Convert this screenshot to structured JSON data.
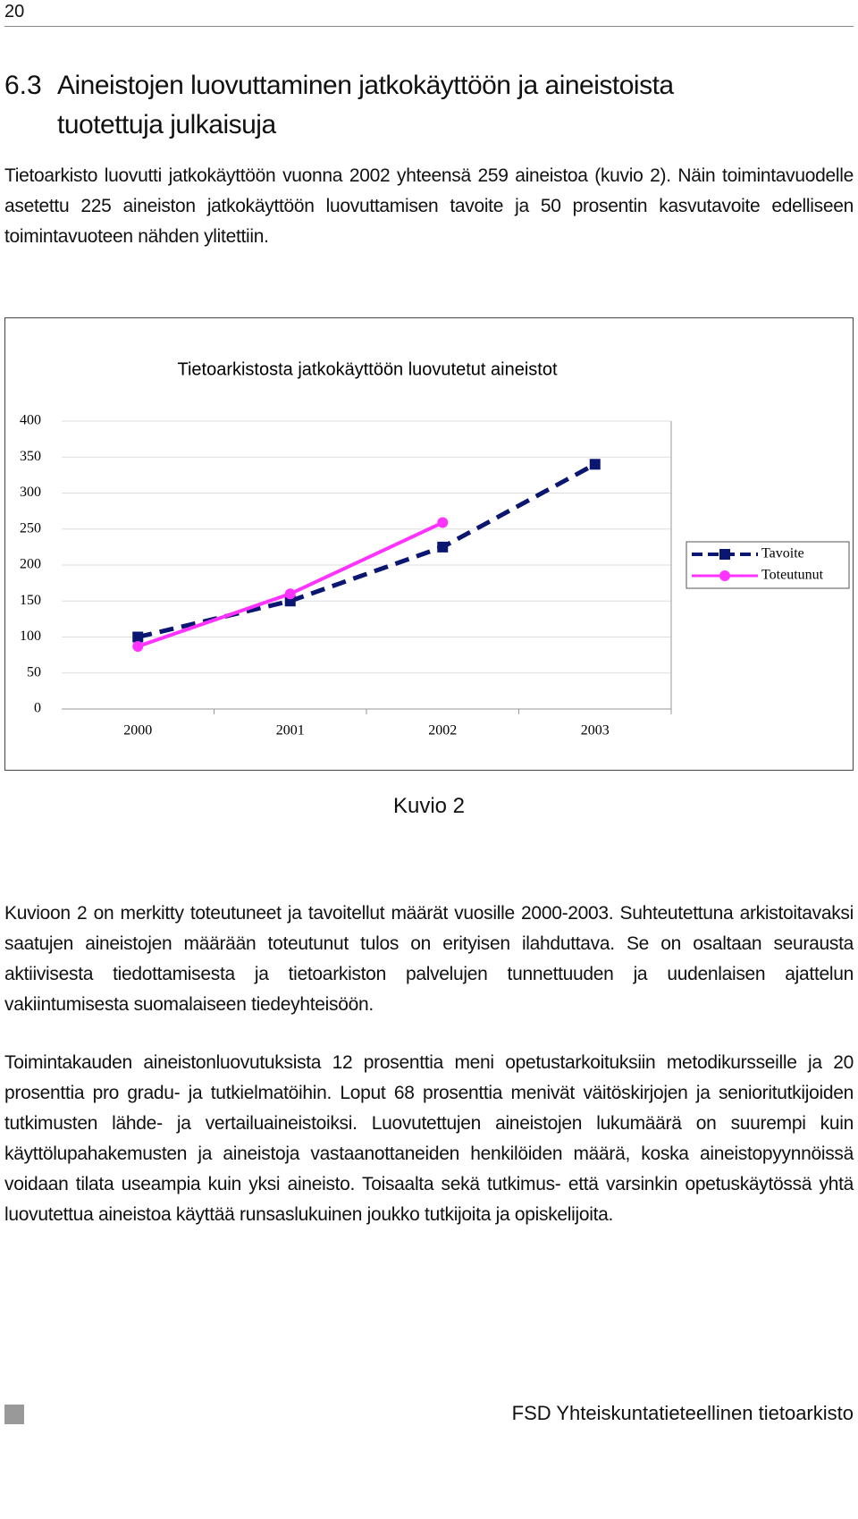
{
  "page_number": "20",
  "heading": {
    "number": "6.3",
    "text": "Aineistojen luovuttaminen jatkokäyttöön ja aineistoista tuotettuja julkaisuja"
  },
  "paragraphs": [
    "Tietoarkisto luovutti jatkokäyttöön vuonna 2002 yhteensä 259 aineistoa (kuvio 2). Näin toimintavuodelle asetettu 225 aineiston jatkokäyttöön luovuttamisen tavoite ja 50 prosentin kasvutavoite edelliseen toimintavuoteen nähden ylitettiin."
  ],
  "chart_data": {
    "type": "line",
    "title": "Tietoarkistosta jatkokäyttöön luovutetut aineistot",
    "categories": [
      "2000",
      "2001",
      "2002",
      "2003"
    ],
    "series": [
      {
        "name": "Tavoite",
        "color": "#0b1670",
        "values": [
          100,
          150,
          225,
          340
        ],
        "marker": "square",
        "dashed": true
      },
      {
        "name": "Toteutunut",
        "color": "#ff33ff",
        "values": [
          87,
          160,
          259,
          null
        ],
        "marker": "circle",
        "dashed": false
      }
    ],
    "ylim": [
      0,
      400
    ],
    "yticks": [
      0,
      50,
      100,
      150,
      200,
      250,
      300,
      350,
      400
    ],
    "grid": true,
    "legend": "right"
  },
  "caption": "Kuvio 2",
  "paragraphs_after": [
    "Kuvioon 2 on merkitty toteutuneet ja tavoitellut määrät vuosille 2000-2003. Suhteutettuna arkistoitavaksi saatujen aineistojen määrään toteutunut tulos on erityisen ilahduttava. Se on osaltaan seurausta aktiivisesta tiedottamisesta ja tietoarkiston palvelujen tunnettuuden ja uudenlaisen ajattelun vakiintumisesta suomalaiseen tiedeyhteisöön.",
    "Toimintakauden aineistonluovutuksista 12 prosenttia meni opetustarkoituksiin metodikursseille ja 20 prosenttia pro gradu- ja tutkielmatöihin. Loput 68 prosenttia menivät väitöskirjojen ja senioritutkijoiden tutkimusten lähde- ja vertailuaineistoiksi. Luovutettujen aineistojen lukumäärä on suurempi kuin käyttölupahakemusten ja aineistoja vastaanottaneiden henkilöiden määrä, koska aineistopyynnöissä voidaan tilata useampia kuin yksi aineisto. Toisaalta sekä tutkimus- että varsinkin opetuskäytössä yhtä luovutettua aineistoa käyttää runsaslukuinen joukko tutkijoita ja opiskelijoita."
  ],
  "footer": "FSD Yhteiskuntatieteellinen tietoarkisto"
}
